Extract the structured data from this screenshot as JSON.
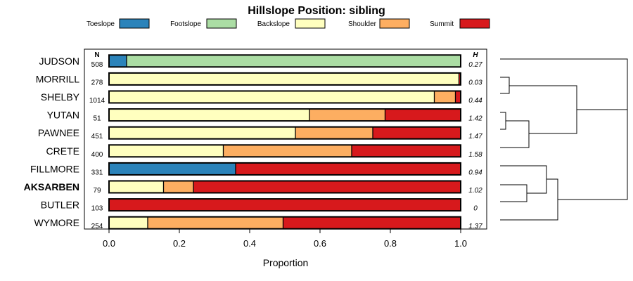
{
  "chart_data": {
    "type": "bar",
    "orientation": "horizontal",
    "stacked": true,
    "title": "Hillslope Position: sibling",
    "xlabel": "Proportion",
    "xlim": [
      0,
      1
    ],
    "xticks": [
      "0.0",
      "0.2",
      "0.4",
      "0.6",
      "0.8",
      "1.0"
    ],
    "legend_position": "top",
    "n_header": "N",
    "h_header": "H",
    "classes": [
      {
        "name": "Toeslope",
        "color": "#2b83ba"
      },
      {
        "name": "Footslope",
        "color": "#abdda4"
      },
      {
        "name": "Backslope",
        "color": "#ffffbf"
      },
      {
        "name": "Shoulder",
        "color": "#fdae61"
      },
      {
        "name": "Summit",
        "color": "#d7191c"
      }
    ],
    "rows": [
      {
        "label": "JUDSON",
        "n": "508",
        "h": "0.27",
        "bold": false,
        "values": [
          0.05,
          0.95,
          0,
          0,
          0
        ]
      },
      {
        "label": "MORRILL",
        "n": "278",
        "h": "0.03",
        "bold": false,
        "values": [
          0,
          0,
          0.995,
          0,
          0.005
        ]
      },
      {
        "label": "SHELBY",
        "n": "1014",
        "h": "0.44",
        "bold": false,
        "values": [
          0,
          0,
          0.925,
          0.06,
          0.015
        ]
      },
      {
        "label": "YUTAN",
        "n": "51",
        "h": "1.42",
        "bold": false,
        "values": [
          0,
          0,
          0.57,
          0.215,
          0.215
        ]
      },
      {
        "label": "PAWNEE",
        "n": "451",
        "h": "1.47",
        "bold": false,
        "values": [
          0,
          0,
          0.53,
          0.22,
          0.25
        ]
      },
      {
        "label": "CRETE",
        "n": "400",
        "h": "1.58",
        "bold": false,
        "values": [
          0,
          0,
          0.325,
          0.365,
          0.31
        ]
      },
      {
        "label": "FILLMORE",
        "n": "331",
        "h": "0.94",
        "bold": false,
        "values": [
          0.36,
          0,
          0,
          0,
          0.64
        ]
      },
      {
        "label": "AKSARBEN",
        "n": "79",
        "h": "1.02",
        "bold": true,
        "values": [
          0,
          0,
          0.155,
          0.085,
          0.76
        ]
      },
      {
        "label": "BUTLER",
        "n": "103",
        "h": "0",
        "bold": false,
        "values": [
          0,
          0,
          0,
          0,
          1.0
        ]
      },
      {
        "label": "WYMORE",
        "n": "254",
        "h": "1.37",
        "bold": false,
        "values": [
          0,
          0,
          0.11,
          0.385,
          0.505
        ]
      }
    ],
    "dendrogram": "hierarchical clustering of rows shown at right"
  }
}
